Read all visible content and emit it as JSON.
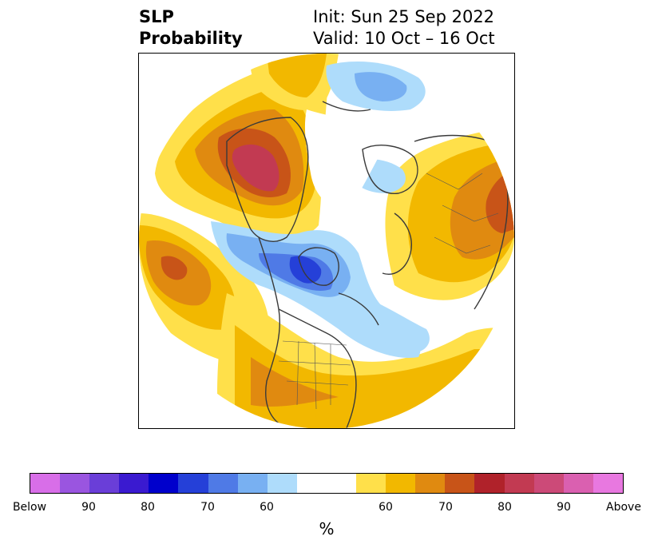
{
  "title": {
    "left_line1": "SLP",
    "left_line2": "Probability",
    "right_line1": "Init: Sun 25 Sep 2022",
    "right_line2": "Valid: 10 Oct – 16 Oct"
  },
  "colorbar": {
    "unit": "%",
    "colors": [
      "#d86ee8",
      "#9a55e0",
      "#6a3ed8",
      "#3a1ad0",
      "#0000cc",
      "#2540d8",
      "#4f7ae6",
      "#78b0f2",
      "#aedcfb",
      "#ffffff",
      "#ffe04a",
      "#f2b800",
      "#e08a10",
      "#c85418",
      "#b0222a",
      "#c23a52",
      "#cc4a78",
      "#da60b0",
      "#e878e0"
    ],
    "tick_labels": [
      "Below",
      "90",
      "80",
      "70",
      "60",
      "60",
      "70",
      "80",
      "90",
      "Above"
    ]
  },
  "legend_colors": {
    "below_light": "#aedcfb",
    "below_mid": "#78b0f2",
    "below_strong": "#4f7ae6",
    "below_deep": "#2540d8",
    "above_light": "#ffe04a",
    "above_mid": "#f2b800",
    "above_orange": "#e08a10",
    "above_rust": "#c85418",
    "above_red": "#b0222a",
    "above_crimson": "#c23a52"
  }
}
